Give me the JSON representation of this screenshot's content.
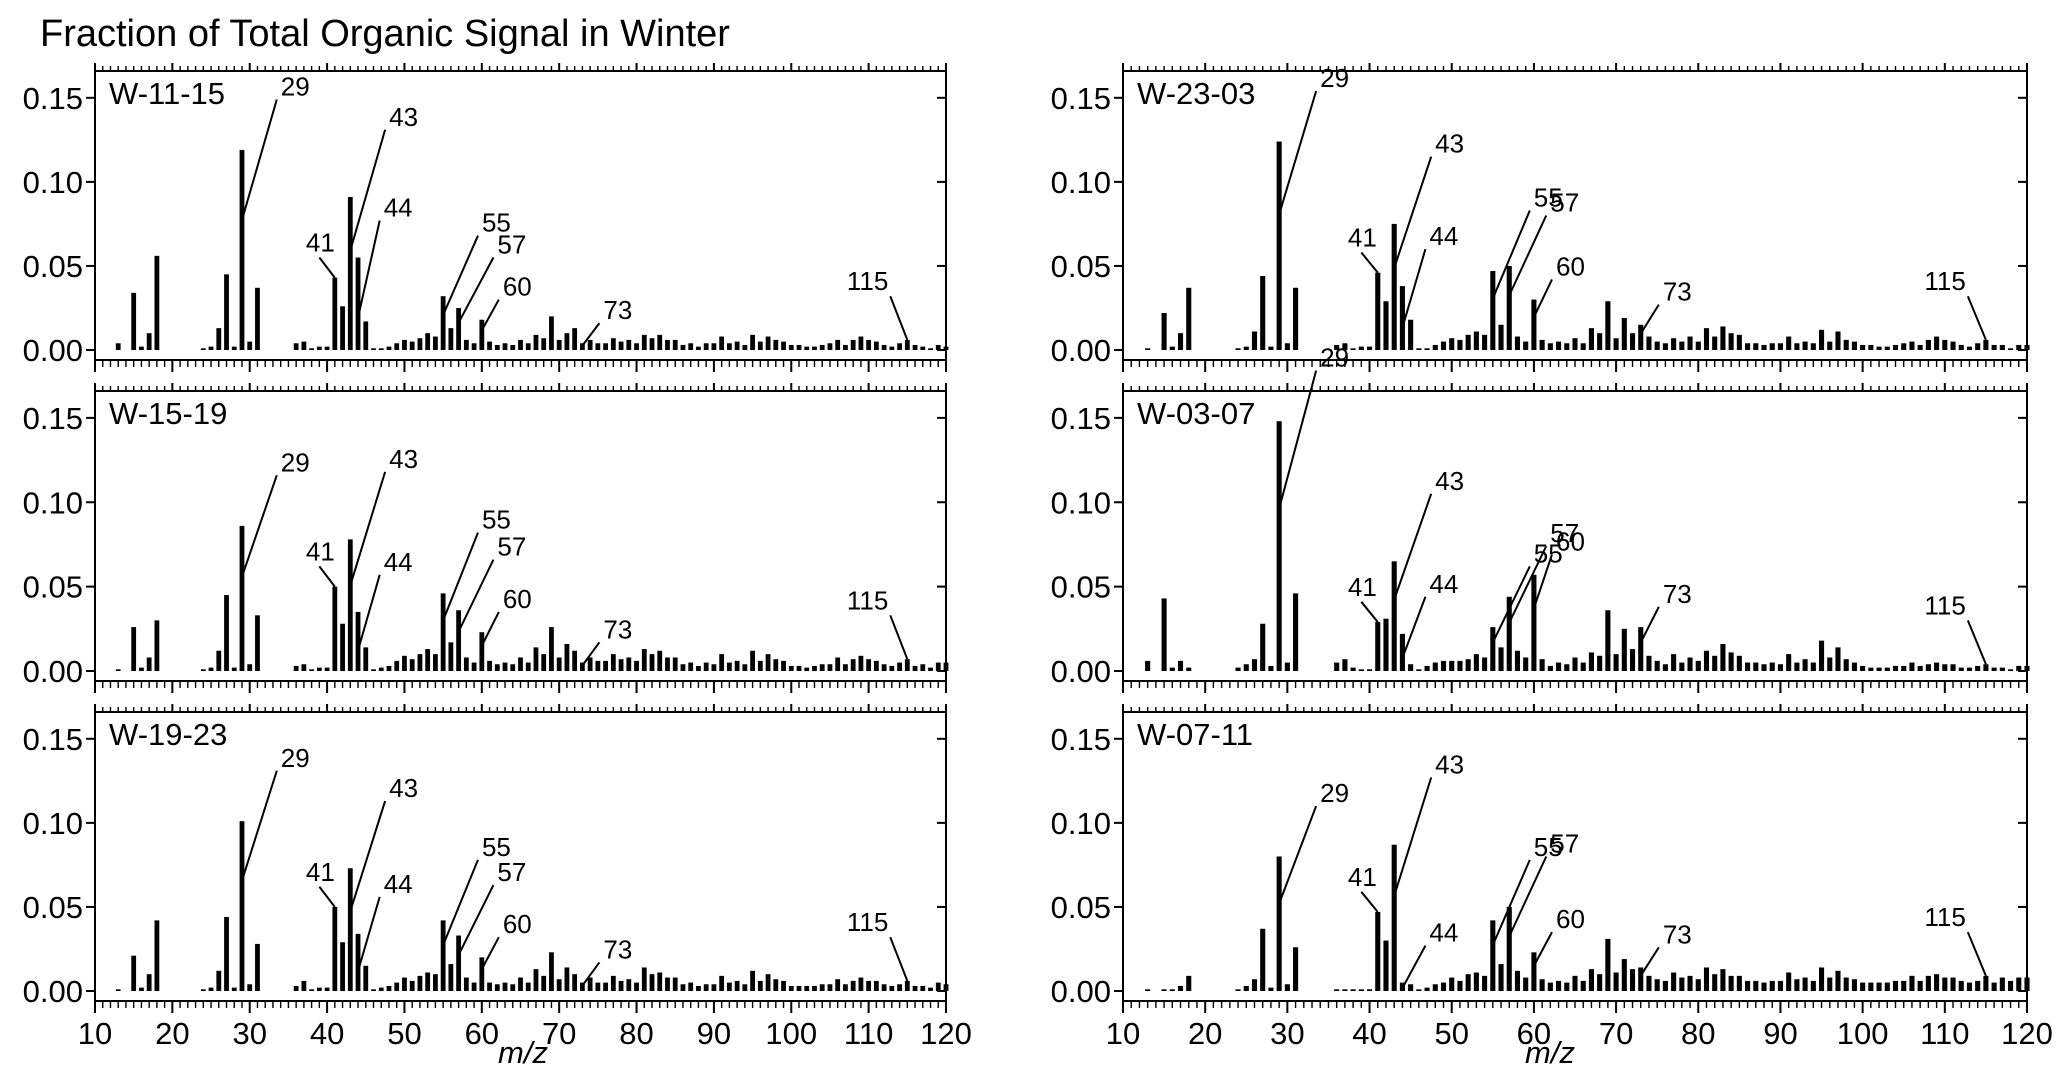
{
  "figure": {
    "title": "Fraction of Total Organic Signal in Winter",
    "xlabel": "m/z",
    "x_ticks": [
      "10",
      "20",
      "30",
      "40",
      "50",
      "60",
      "70",
      "80",
      "90",
      "100",
      "110",
      "120"
    ],
    "y_ticks": [
      "0.00",
      "0.05",
      "0.10",
      "0.15"
    ]
  },
  "chart_data": [
    {
      "type": "bar",
      "label": "W-11-15",
      "column": "left",
      "row": 0,
      "xlabel": "m/z",
      "ylabel": "",
      "xlim": [
        10,
        120
      ],
      "ylim": [
        0,
        0.16
      ],
      "annotated_peaks": [
        "29",
        "41",
        "43",
        "44",
        "55",
        "57",
        "60",
        "73",
        "115"
      ],
      "x": [
        13,
        15,
        16,
        17,
        18,
        24,
        25,
        26,
        27,
        28,
        29,
        30,
        31,
        36,
        37,
        38,
        39,
        40,
        41,
        42,
        43,
        44,
        45,
        46,
        47,
        48,
        49,
        50,
        51,
        52,
        53,
        54,
        55,
        56,
        57,
        58,
        59,
        60,
        61,
        62,
        63,
        64,
        65,
        66,
        67,
        68,
        69,
        70,
        71,
        72,
        73,
        74,
        75,
        76,
        77,
        78,
        79,
        80,
        81,
        82,
        83,
        84,
        85,
        86,
        87,
        88,
        89,
        90,
        91,
        92,
        93,
        94,
        95,
        96,
        97,
        98,
        99,
        100,
        101,
        102,
        103,
        104,
        105,
        106,
        107,
        108,
        109,
        110,
        111,
        112,
        113,
        114,
        115,
        116,
        117,
        118,
        119,
        120
      ],
      "values": [
        0.004,
        0.034,
        0.002,
        0.01,
        0.056,
        0.001,
        0.002,
        0.013,
        0.045,
        0.002,
        0.119,
        0.005,
        0.037,
        0.004,
        0.005,
        0.001,
        0.002,
        0.002,
        0.043,
        0.026,
        0.091,
        0.055,
        0.017,
        0.001,
        0.001,
        0.002,
        0.004,
        0.006,
        0.005,
        0.007,
        0.01,
        0.008,
        0.032,
        0.013,
        0.025,
        0.006,
        0.004,
        0.018,
        0.005,
        0.003,
        0.004,
        0.003,
        0.006,
        0.004,
        0.009,
        0.007,
        0.02,
        0.006,
        0.01,
        0.013,
        0.004,
        0.006,
        0.004,
        0.004,
        0.007,
        0.005,
        0.006,
        0.004,
        0.009,
        0.007,
        0.009,
        0.006,
        0.006,
        0.003,
        0.004,
        0.002,
        0.004,
        0.004,
        0.008,
        0.004,
        0.005,
        0.003,
        0.009,
        0.005,
        0.008,
        0.006,
        0.005,
        0.003,
        0.003,
        0.002,
        0.002,
        0.003,
        0.004,
        0.006,
        0.003,
        0.006,
        0.008,
        0.006,
        0.005,
        0.003,
        0.002,
        0.004,
        0.006,
        0.003,
        0.002,
        0.001,
        0.003,
        0.002
      ]
    },
    {
      "type": "bar",
      "label": "W-15-19",
      "column": "left",
      "row": 1,
      "xlabel": "m/z",
      "ylabel": "",
      "xlim": [
        10,
        120
      ],
      "ylim": [
        0,
        0.16
      ],
      "annotated_peaks": [
        "29",
        "41",
        "43",
        "44",
        "55",
        "57",
        "60",
        "73",
        "115"
      ],
      "x": [
        13,
        15,
        16,
        17,
        18,
        24,
        25,
        26,
        27,
        28,
        29,
        30,
        31,
        36,
        37,
        38,
        39,
        40,
        41,
        42,
        43,
        44,
        45,
        46,
        47,
        48,
        49,
        50,
        51,
        52,
        53,
        54,
        55,
        56,
        57,
        58,
        59,
        60,
        61,
        62,
        63,
        64,
        65,
        66,
        67,
        68,
        69,
        70,
        71,
        72,
        73,
        74,
        75,
        76,
        77,
        78,
        79,
        80,
        81,
        82,
        83,
        84,
        85,
        86,
        87,
        88,
        89,
        90,
        91,
        92,
        93,
        94,
        95,
        96,
        97,
        98,
        99,
        100,
        101,
        102,
        103,
        104,
        105,
        106,
        107,
        108,
        109,
        110,
        111,
        112,
        113,
        114,
        115,
        116,
        117,
        118,
        119,
        120
      ],
      "values": [
        0.001,
        0.026,
        0.002,
        0.008,
        0.03,
        0.001,
        0.002,
        0.012,
        0.045,
        0.002,
        0.086,
        0.004,
        0.033,
        0.003,
        0.004,
        0.001,
        0.002,
        0.002,
        0.05,
        0.028,
        0.078,
        0.035,
        0.014,
        0.001,
        0.002,
        0.003,
        0.006,
        0.009,
        0.007,
        0.01,
        0.013,
        0.01,
        0.046,
        0.017,
        0.036,
        0.008,
        0.005,
        0.023,
        0.006,
        0.004,
        0.005,
        0.004,
        0.008,
        0.005,
        0.014,
        0.01,
        0.026,
        0.008,
        0.016,
        0.012,
        0.005,
        0.008,
        0.006,
        0.006,
        0.01,
        0.007,
        0.008,
        0.006,
        0.013,
        0.01,
        0.012,
        0.008,
        0.008,
        0.004,
        0.005,
        0.003,
        0.005,
        0.004,
        0.01,
        0.005,
        0.006,
        0.004,
        0.012,
        0.006,
        0.01,
        0.007,
        0.006,
        0.003,
        0.003,
        0.002,
        0.003,
        0.004,
        0.004,
        0.008,
        0.004,
        0.007,
        0.009,
        0.007,
        0.006,
        0.004,
        0.003,
        0.005,
        0.007,
        0.003,
        0.004,
        0.002,
        0.005,
        0.005
      ]
    },
    {
      "type": "bar",
      "label": "W-19-23",
      "column": "left",
      "row": 2,
      "xlabel": "m/z",
      "ylabel": "",
      "xlim": [
        10,
        120
      ],
      "ylim": [
        0,
        0.16
      ],
      "annotated_peaks": [
        "29",
        "41",
        "43",
        "44",
        "55",
        "57",
        "60",
        "73",
        "115"
      ],
      "x": [
        13,
        15,
        16,
        17,
        18,
        24,
        25,
        26,
        27,
        28,
        29,
        30,
        31,
        36,
        37,
        38,
        39,
        40,
        41,
        42,
        43,
        44,
        45,
        46,
        47,
        48,
        49,
        50,
        51,
        52,
        53,
        54,
        55,
        56,
        57,
        58,
        59,
        60,
        61,
        62,
        63,
        64,
        65,
        66,
        67,
        68,
        69,
        70,
        71,
        72,
        73,
        74,
        75,
        76,
        77,
        78,
        79,
        80,
        81,
        82,
        83,
        84,
        85,
        86,
        87,
        88,
        89,
        90,
        91,
        92,
        93,
        94,
        95,
        96,
        97,
        98,
        99,
        100,
        101,
        102,
        103,
        104,
        105,
        106,
        107,
        108,
        109,
        110,
        111,
        112,
        113,
        114,
        115,
        116,
        117,
        118,
        119,
        120
      ],
      "values": [
        0.001,
        0.021,
        0.002,
        0.01,
        0.042,
        0.001,
        0.002,
        0.012,
        0.044,
        0.002,
        0.101,
        0.004,
        0.028,
        0.003,
        0.006,
        0.001,
        0.002,
        0.002,
        0.05,
        0.029,
        0.073,
        0.034,
        0.015,
        0.001,
        0.002,
        0.003,
        0.005,
        0.008,
        0.006,
        0.009,
        0.011,
        0.01,
        0.042,
        0.016,
        0.033,
        0.008,
        0.005,
        0.02,
        0.005,
        0.004,
        0.005,
        0.004,
        0.008,
        0.005,
        0.013,
        0.009,
        0.023,
        0.007,
        0.014,
        0.01,
        0.005,
        0.008,
        0.005,
        0.005,
        0.009,
        0.006,
        0.007,
        0.005,
        0.014,
        0.01,
        0.011,
        0.008,
        0.008,
        0.004,
        0.005,
        0.003,
        0.004,
        0.004,
        0.009,
        0.005,
        0.006,
        0.004,
        0.012,
        0.006,
        0.01,
        0.007,
        0.006,
        0.003,
        0.003,
        0.003,
        0.003,
        0.004,
        0.004,
        0.007,
        0.004,
        0.006,
        0.008,
        0.006,
        0.006,
        0.004,
        0.003,
        0.004,
        0.006,
        0.003,
        0.003,
        0.002,
        0.005,
        0.004
      ]
    },
    {
      "type": "bar",
      "label": "W-23-03",
      "column": "right",
      "row": 0,
      "xlabel": "m/z",
      "ylabel": "",
      "xlim": [
        10,
        120
      ],
      "ylim": [
        0,
        0.16
      ],
      "annotated_peaks": [
        "29",
        "41",
        "43",
        "44",
        "55",
        "57",
        "60",
        "73",
        "115"
      ],
      "x": [
        13,
        15,
        16,
        17,
        18,
        24,
        25,
        26,
        27,
        28,
        29,
        30,
        31,
        36,
        37,
        38,
        39,
        40,
        41,
        42,
        43,
        44,
        45,
        46,
        47,
        48,
        49,
        50,
        51,
        52,
        53,
        54,
        55,
        56,
        57,
        58,
        59,
        60,
        61,
        62,
        63,
        64,
        65,
        66,
        67,
        68,
        69,
        70,
        71,
        72,
        73,
        74,
        75,
        76,
        77,
        78,
        79,
        80,
        81,
        82,
        83,
        84,
        85,
        86,
        87,
        88,
        89,
        90,
        91,
        92,
        93,
        94,
        95,
        96,
        97,
        98,
        99,
        100,
        101,
        102,
        103,
        104,
        105,
        106,
        107,
        108,
        109,
        110,
        111,
        112,
        113,
        114,
        115,
        116,
        117,
        118,
        119,
        120
      ],
      "values": [
        0.001,
        0.022,
        0.002,
        0.01,
        0.037,
        0.001,
        0.002,
        0.011,
        0.044,
        0.002,
        0.124,
        0.004,
        0.037,
        0.003,
        0.004,
        0.001,
        0.002,
        0.002,
        0.046,
        0.029,
        0.075,
        0.038,
        0.018,
        0.001,
        0.001,
        0.003,
        0.005,
        0.007,
        0.006,
        0.009,
        0.011,
        0.009,
        0.047,
        0.015,
        0.05,
        0.008,
        0.005,
        0.03,
        0.006,
        0.004,
        0.005,
        0.004,
        0.007,
        0.004,
        0.013,
        0.01,
        0.029,
        0.007,
        0.019,
        0.01,
        0.015,
        0.008,
        0.005,
        0.004,
        0.007,
        0.005,
        0.008,
        0.005,
        0.013,
        0.008,
        0.014,
        0.01,
        0.009,
        0.004,
        0.004,
        0.003,
        0.004,
        0.004,
        0.008,
        0.004,
        0.005,
        0.004,
        0.012,
        0.005,
        0.011,
        0.006,
        0.005,
        0.003,
        0.003,
        0.002,
        0.002,
        0.003,
        0.004,
        0.005,
        0.003,
        0.006,
        0.008,
        0.006,
        0.005,
        0.003,
        0.002,
        0.004,
        0.006,
        0.003,
        0.003,
        0.001,
        0.003,
        0.003
      ]
    },
    {
      "type": "bar",
      "label": "W-03-07",
      "column": "right",
      "row": 1,
      "xlabel": "m/z",
      "ylabel": "",
      "xlim": [
        10,
        120
      ],
      "ylim": [
        0,
        0.16
      ],
      "annotated_peaks": [
        "29",
        "41",
        "43",
        "44",
        "55",
        "57",
        "60",
        "73",
        "115"
      ],
      "x": [
        13,
        15,
        16,
        17,
        18,
        24,
        25,
        26,
        27,
        28,
        29,
        30,
        31,
        36,
        37,
        38,
        39,
        40,
        41,
        42,
        43,
        44,
        45,
        46,
        47,
        48,
        49,
        50,
        51,
        52,
        53,
        54,
        55,
        56,
        57,
        58,
        59,
        60,
        61,
        62,
        63,
        64,
        65,
        66,
        67,
        68,
        69,
        70,
        71,
        72,
        73,
        74,
        75,
        76,
        77,
        78,
        79,
        80,
        81,
        82,
        83,
        84,
        85,
        86,
        87,
        88,
        89,
        90,
        91,
        92,
        93,
        94,
        95,
        96,
        97,
        98,
        99,
        100,
        101,
        102,
        103,
        104,
        105,
        106,
        107,
        108,
        109,
        110,
        111,
        112,
        113,
        114,
        115,
        116,
        117,
        118,
        119,
        120
      ],
      "values": [
        0.006,
        0.043,
        0.002,
        0.006,
        0.002,
        0.002,
        0.004,
        0.007,
        0.028,
        0.003,
        0.148,
        0.005,
        0.046,
        0.005,
        0.007,
        0.002,
        0.001,
        0.001,
        0.029,
        0.031,
        0.065,
        0.022,
        0.004,
        0.001,
        0.003,
        0.005,
        0.006,
        0.006,
        0.006,
        0.007,
        0.01,
        0.008,
        0.026,
        0.014,
        0.044,
        0.012,
        0.008,
        0.057,
        0.007,
        0.003,
        0.005,
        0.004,
        0.008,
        0.005,
        0.011,
        0.009,
        0.036,
        0.01,
        0.025,
        0.013,
        0.026,
        0.009,
        0.006,
        0.004,
        0.01,
        0.005,
        0.008,
        0.006,
        0.012,
        0.009,
        0.016,
        0.011,
        0.009,
        0.005,
        0.005,
        0.004,
        0.005,
        0.004,
        0.01,
        0.005,
        0.007,
        0.005,
        0.018,
        0.008,
        0.014,
        0.007,
        0.005,
        0.003,
        0.002,
        0.002,
        0.002,
        0.003,
        0.003,
        0.005,
        0.003,
        0.004,
        0.005,
        0.004,
        0.004,
        0.002,
        0.002,
        0.003,
        0.004,
        0.002,
        0.002,
        0.001,
        0.003,
        0.003
      ]
    },
    {
      "type": "bar",
      "label": "W-07-11",
      "column": "right",
      "row": 2,
      "xlabel": "m/z",
      "ylabel": "",
      "xlim": [
        10,
        120
      ],
      "ylim": [
        0,
        0.16
      ],
      "annotated_peaks": [
        "29",
        "41",
        "43",
        "44",
        "55",
        "57",
        "60",
        "73",
        "115"
      ],
      "x": [
        13,
        15,
        16,
        17,
        18,
        24,
        25,
        26,
        27,
        28,
        29,
        30,
        31,
        36,
        37,
        38,
        39,
        40,
        41,
        42,
        43,
        44,
        45,
        46,
        47,
        48,
        49,
        50,
        51,
        52,
        53,
        54,
        55,
        56,
        57,
        58,
        59,
        60,
        61,
        62,
        63,
        64,
        65,
        66,
        67,
        68,
        69,
        70,
        71,
        72,
        73,
        74,
        75,
        76,
        77,
        78,
        79,
        80,
        81,
        82,
        83,
        84,
        85,
        86,
        87,
        88,
        89,
        90,
        91,
        92,
        93,
        94,
        95,
        96,
        97,
        98,
        99,
        100,
        101,
        102,
        103,
        104,
        105,
        106,
        107,
        108,
        109,
        110,
        111,
        112,
        113,
        114,
        115,
        116,
        117,
        118,
        119,
        120
      ],
      "values": [
        0.001,
        0.001,
        0.001,
        0.003,
        0.009,
        0.001,
        0.003,
        0.007,
        0.037,
        0.002,
        0.08,
        0.004,
        0.026,
        0.001,
        0.001,
        0.001,
        0.001,
        0.001,
        0.047,
        0.03,
        0.087,
        0.005,
        0.004,
        0.001,
        0.002,
        0.004,
        0.005,
        0.008,
        0.006,
        0.01,
        0.011,
        0.009,
        0.042,
        0.016,
        0.05,
        0.012,
        0.008,
        0.023,
        0.007,
        0.005,
        0.006,
        0.005,
        0.009,
        0.006,
        0.013,
        0.01,
        0.031,
        0.011,
        0.019,
        0.013,
        0.014,
        0.009,
        0.007,
        0.006,
        0.011,
        0.008,
        0.009,
        0.007,
        0.014,
        0.01,
        0.013,
        0.009,
        0.009,
        0.006,
        0.006,
        0.005,
        0.006,
        0.006,
        0.011,
        0.007,
        0.008,
        0.006,
        0.014,
        0.008,
        0.012,
        0.008,
        0.007,
        0.005,
        0.005,
        0.005,
        0.005,
        0.006,
        0.006,
        0.009,
        0.006,
        0.009,
        0.01,
        0.008,
        0.008,
        0.006,
        0.005,
        0.006,
        0.009,
        0.005,
        0.008,
        0.006,
        0.008,
        0.008
      ]
    }
  ]
}
